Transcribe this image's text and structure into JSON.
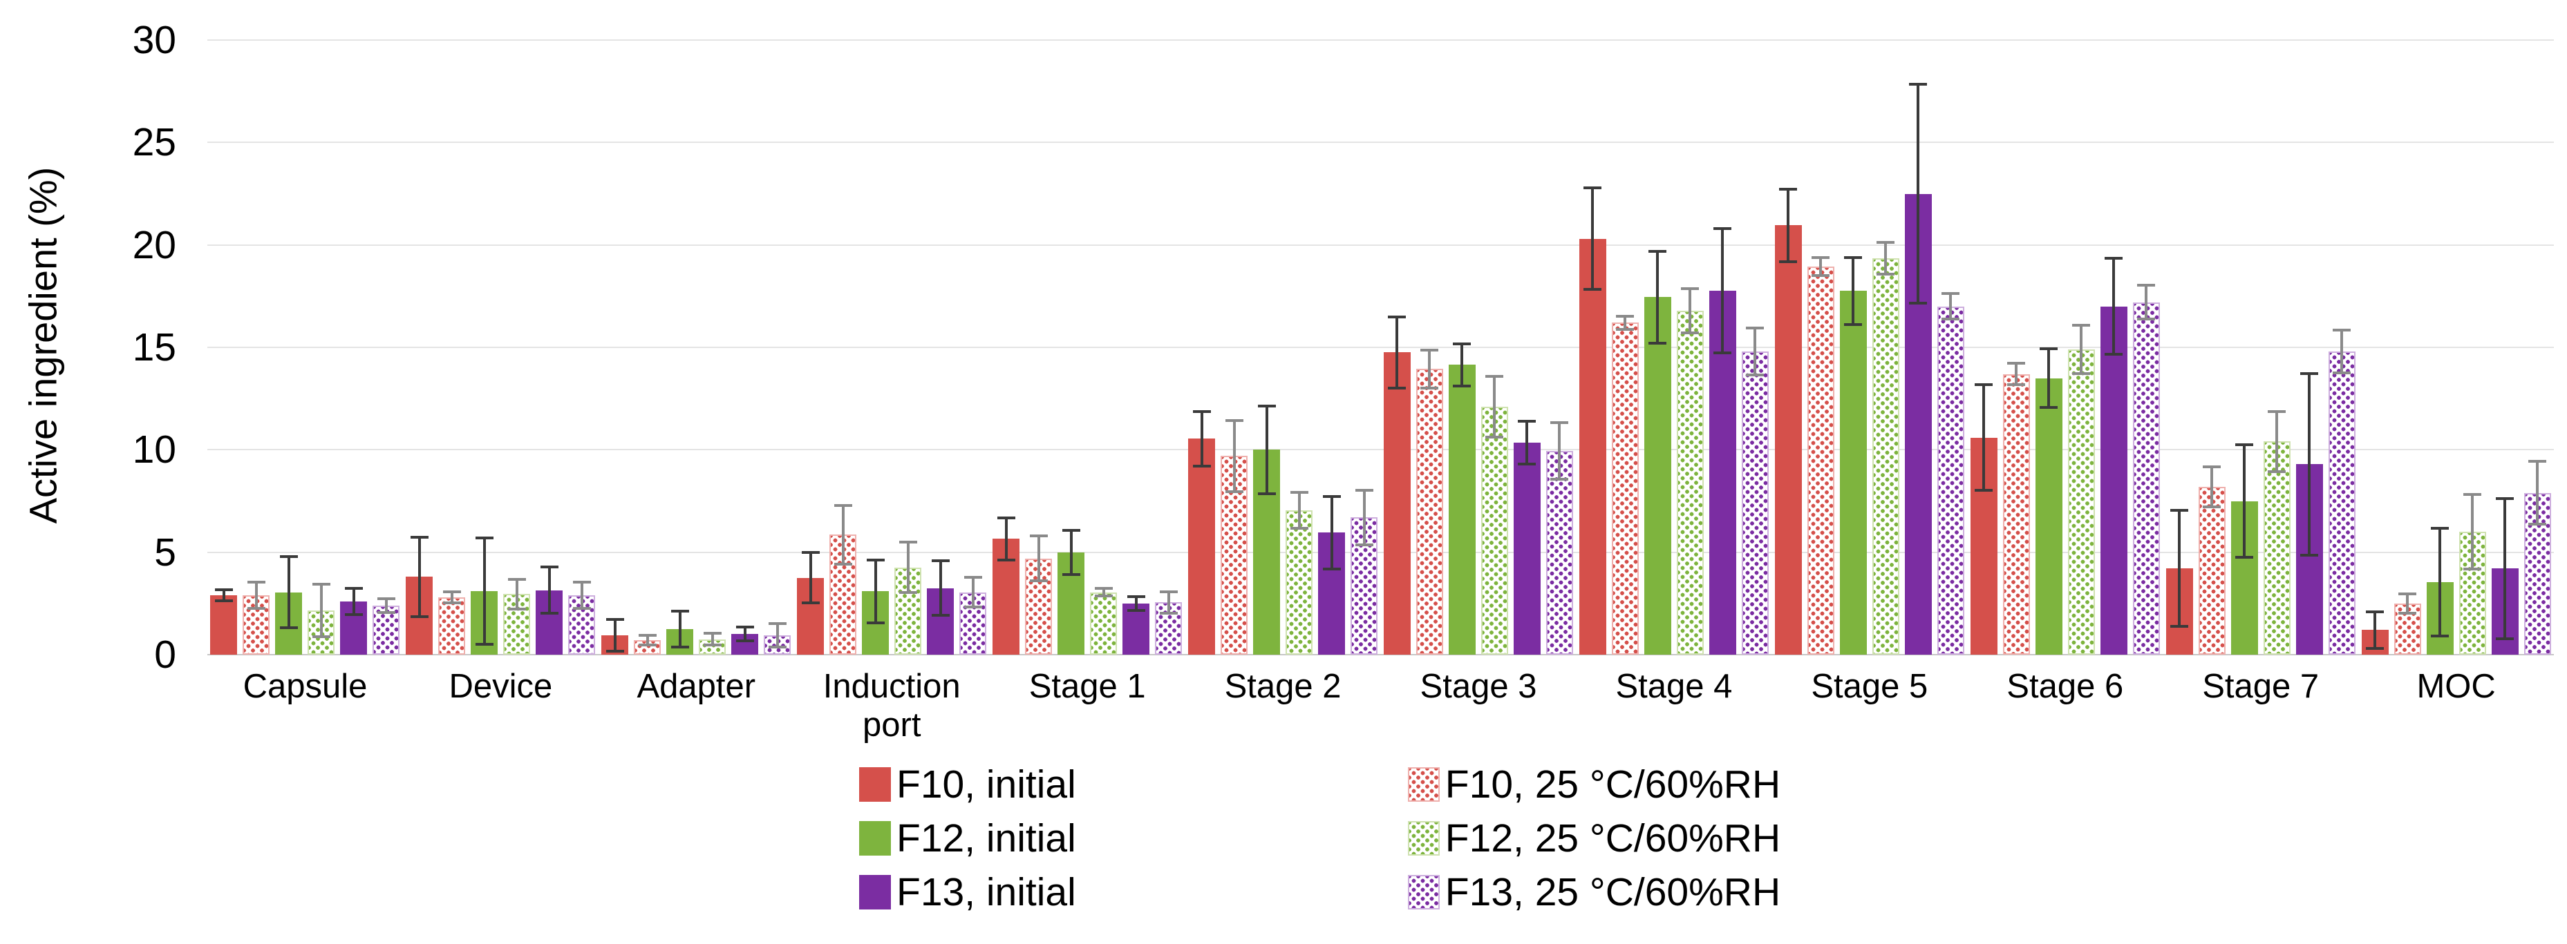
{
  "chart_data": {
    "type": "bar",
    "title": "",
    "xlabel": "",
    "ylabel": "Active ingredient (%)",
    "ylim": [
      0,
      30
    ],
    "yticks": [
      0,
      5,
      10,
      15,
      20,
      25,
      30
    ],
    "grid": true,
    "legend_position": "bottom",
    "categories": [
      "Capsule",
      "Device",
      "Adapter",
      "Induction port",
      "Stage 1",
      "Stage 2",
      "Stage 3",
      "Stage 4",
      "Stage 5",
      "Stage 6",
      "Stage 7",
      "MOC"
    ],
    "series": [
      {
        "name": "F10, initial",
        "color": "#d5504b",
        "tint": "#efb0ad",
        "pattern": false,
        "err_color": "#3a3a3a",
        "values": [
          2.9,
          3.8,
          0.95,
          3.75,
          5.65,
          10.55,
          14.75,
          20.3,
          20.95,
          10.6,
          4.2,
          1.2
        ],
        "errors": [
          0.35,
          2.0,
          0.85,
          1.3,
          1.1,
          1.4,
          1.8,
          2.55,
          1.85,
          2.65,
          2.9,
          0.95
        ]
      },
      {
        "name": "F10, 25 °C/60%RH",
        "color": "#d5504b",
        "tint": "#efb0ad",
        "pattern": true,
        "err_color": "#8a8a8a",
        "values": [
          2.9,
          2.8,
          0.7,
          5.85,
          4.7,
          9.7,
          13.95,
          16.2,
          18.95,
          13.7,
          8.2,
          2.5
        ],
        "errors": [
          0.7,
          0.35,
          0.3,
          1.5,
          1.15,
          1.8,
          1.0,
          0.4,
          0.5,
          0.6,
          1.05,
          0.55
        ]
      },
      {
        "name": "F12, initial",
        "color": "#7eb43e",
        "tint": "#cfe2b0",
        "pattern": false,
        "err_color": "#3a3a3a",
        "values": [
          3.05,
          3.1,
          1.25,
          3.1,
          5.0,
          10.0,
          14.15,
          17.45,
          17.75,
          13.5,
          7.5,
          3.55
        ],
        "errors": [
          1.8,
          2.65,
          0.95,
          1.6,
          1.15,
          2.2,
          1.1,
          2.3,
          1.7,
          1.5,
          2.8,
          2.7
        ]
      },
      {
        "name": "F12, 25 °C/60%RH",
        "color": "#7eb43e",
        "tint": "#cfe2b0",
        "pattern": true,
        "err_color": "#8a8a8a",
        "values": [
          2.15,
          2.95,
          0.75,
          4.25,
          3.05,
          7.05,
          12.1,
          16.8,
          19.35,
          14.9,
          10.4,
          6.0
        ],
        "errors": [
          1.35,
          0.8,
          0.35,
          1.3,
          0.25,
          0.95,
          1.55,
          1.15,
          0.85,
          1.25,
          1.55,
          1.9
        ]
      },
      {
        "name": "F13, initial",
        "color": "#7b2da2",
        "tint": "#cdaede",
        "pattern": false,
        "err_color": "#3a3a3a",
        "values": [
          2.6,
          3.15,
          1.0,
          3.25,
          2.5,
          5.95,
          10.35,
          17.75,
          22.5,
          17.0,
          9.3,
          4.2
        ],
        "errors": [
          0.7,
          1.2,
          0.4,
          1.4,
          0.4,
          1.85,
          1.1,
          3.1,
          5.4,
          2.4,
          4.5,
          3.5
        ]
      },
      {
        "name": "F13, 25 °C/60%RH",
        "color": "#7b2da2",
        "tint": "#cdaede",
        "pattern": true,
        "err_color": "#8a8a8a",
        "values": [
          2.4,
          2.9,
          0.95,
          3.05,
          2.55,
          6.7,
          9.95,
          14.8,
          17.0,
          17.2,
          14.8,
          7.9
        ],
        "errors": [
          0.4,
          0.7,
          0.65,
          0.8,
          0.6,
          1.4,
          1.45,
          1.2,
          0.7,
          0.9,
          1.1,
          1.6
        ]
      }
    ],
    "legend_column_order": [
      [
        0,
        2,
        4
      ],
      [
        1,
        3,
        5
      ]
    ]
  }
}
